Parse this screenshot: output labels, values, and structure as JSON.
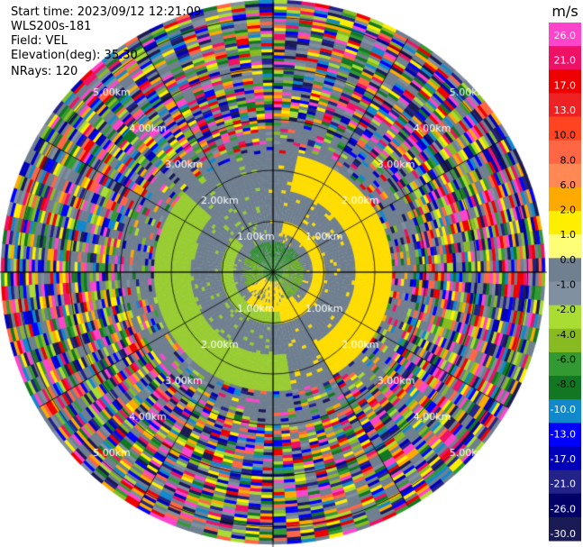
{
  "header": {
    "start_time": "Start time: 2023/09/12 12:21:09",
    "instrument": "WLS200s-181",
    "field": "Field: VEL",
    "elevation": "Elevation(deg): 35.30",
    "nrays": "NRays: 120"
  },
  "colorbar": {
    "unit": "m/s",
    "ticks": [
      "26.0",
      "21.0",
      "17.0",
      "13.0",
      "10.0",
      "8.0",
      "6.0",
      "2.0",
      "1.0",
      "0.0",
      "-1.0",
      "-2.0",
      "-4.0",
      "-6.0",
      "-8.0",
      "-10.0",
      "-13.0",
      "-17.0",
      "-21.0",
      "-26.0",
      "-30.0"
    ],
    "colors": [
      "#ff44cc",
      "#ee1166",
      "#ee0000",
      "#ee2222",
      "#ff4422",
      "#ff6644",
      "#ff8855",
      "#ffaa00",
      "#ffee00",
      "#ffff77",
      "#708090",
      "#8090a0",
      "#aadd33",
      "#88bb22",
      "#339933",
      "#117722",
      "#1188cc",
      "#0000ff",
      "#0000bb",
      "#222288",
      "#000066",
      "#1a1a55"
    ]
  },
  "chart_data": {
    "type": "heatmap",
    "title": "",
    "projection": "polar PPI",
    "field": "VEL",
    "units": "m/s",
    "nrays": 120,
    "elevation_deg": 35.3,
    "range_rings_km": [
      1.0,
      2.0,
      3.0,
      4.0,
      5.0
    ],
    "range_labels": [
      "1.00km",
      "2.00km",
      "3.00km",
      "4.00km",
      "5.00km"
    ],
    "azimuth_lines_deg": [
      0,
      30,
      60,
      90,
      120,
      150,
      180,
      210,
      240,
      270,
      300,
      330
    ],
    "max_range_km": 5.3,
    "inner_green_km": 0.6,
    "yellow_ring_km": [
      0.8,
      2.4
    ],
    "noise_start_km": 2.9,
    "color_scale": {
      "min": -30.0,
      "max": 26.0
    }
  }
}
